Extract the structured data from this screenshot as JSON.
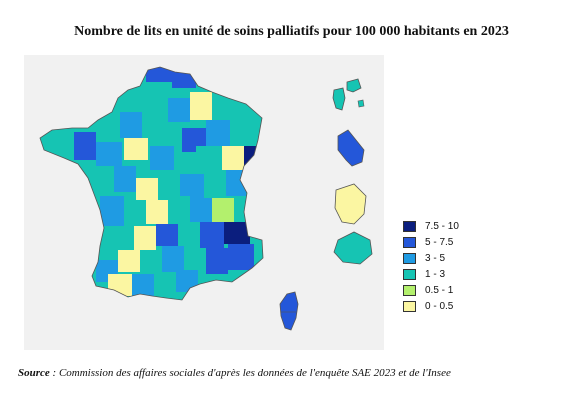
{
  "title": "Nombre de lits en unité de soins palliatifs pour 100 000 habitants en 2023",
  "legend": [
    {
      "label": "7.5 - 10",
      "color": "#0b1e7e"
    },
    {
      "label": "5 - 7.5",
      "color": "#2457d9"
    },
    {
      "label": "3 - 5",
      "color": "#1f9be3"
    },
    {
      "label": "1 - 3",
      "color": "#16c4b3"
    },
    {
      "label": "0.5 - 1",
      "color": "#b3f06d"
    },
    {
      "label": "0 - 0.5",
      "color": "#fbf6a2"
    }
  ],
  "source": {
    "label": "Source",
    "text": " : Commission des affaires sociales d'après les données de l'enquête SAE 2023 et de l'Insee"
  }
}
